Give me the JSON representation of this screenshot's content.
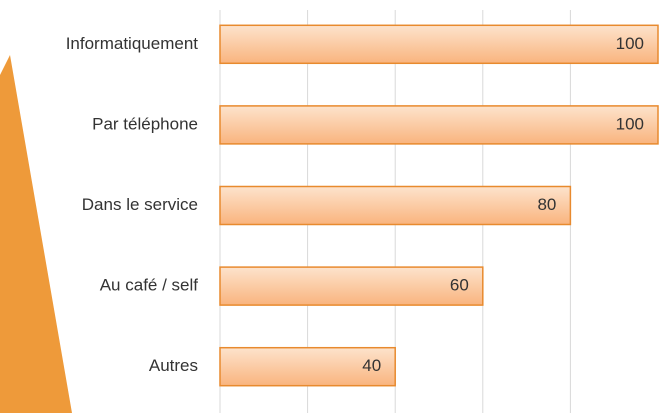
{
  "chart_data": {
    "type": "bar",
    "orientation": "horizontal",
    "categories": [
      "Informatiquement",
      "Par téléphone",
      "Dans le service",
      "Au café / self",
      "Autres"
    ],
    "values": [
      100,
      100,
      80,
      60,
      40
    ],
    "color": "#f9b47e",
    "xlim": [
      0,
      100
    ],
    "xticks": [
      0,
      20,
      40,
      60,
      80
    ],
    "grid": true
  }
}
